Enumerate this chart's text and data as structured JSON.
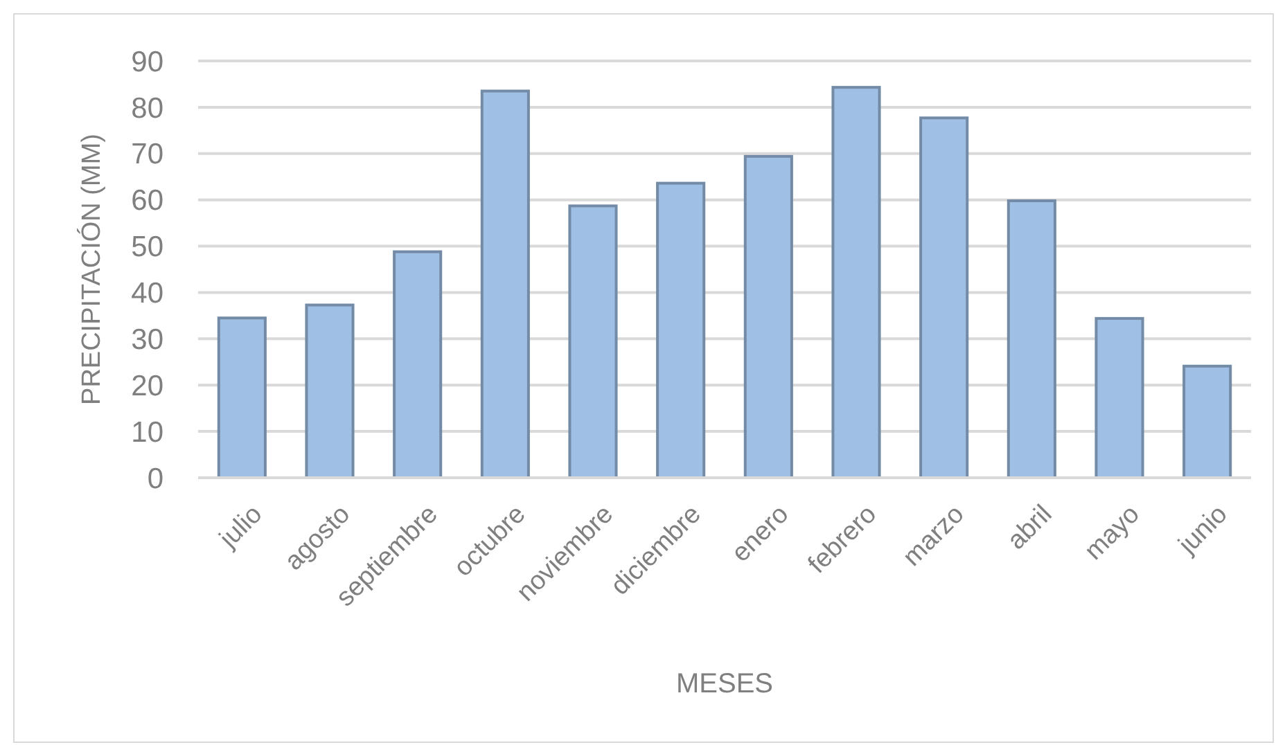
{
  "chart_data": {
    "type": "bar",
    "xlabel": "MESES",
    "ylabel": "PRECIPITACIÓN (MM)",
    "categories": [
      "julio",
      "agosto",
      "septiembre",
      "octubre",
      "noviembre",
      "diciembre",
      "enero",
      "febrero",
      "marzo",
      "abril",
      "mayo",
      "junio"
    ],
    "values": [
      34.5,
      37.3,
      48.8,
      83.5,
      58.7,
      63.6,
      69.4,
      84.3,
      77.7,
      59.8,
      34.4,
      24.1
    ],
    "color": "#9fbfe5",
    "ylim": [
      0,
      90
    ],
    "yticks": [
      0,
      10,
      20,
      30,
      40,
      50,
      60,
      70,
      80,
      90
    ],
    "grid": "y"
  }
}
